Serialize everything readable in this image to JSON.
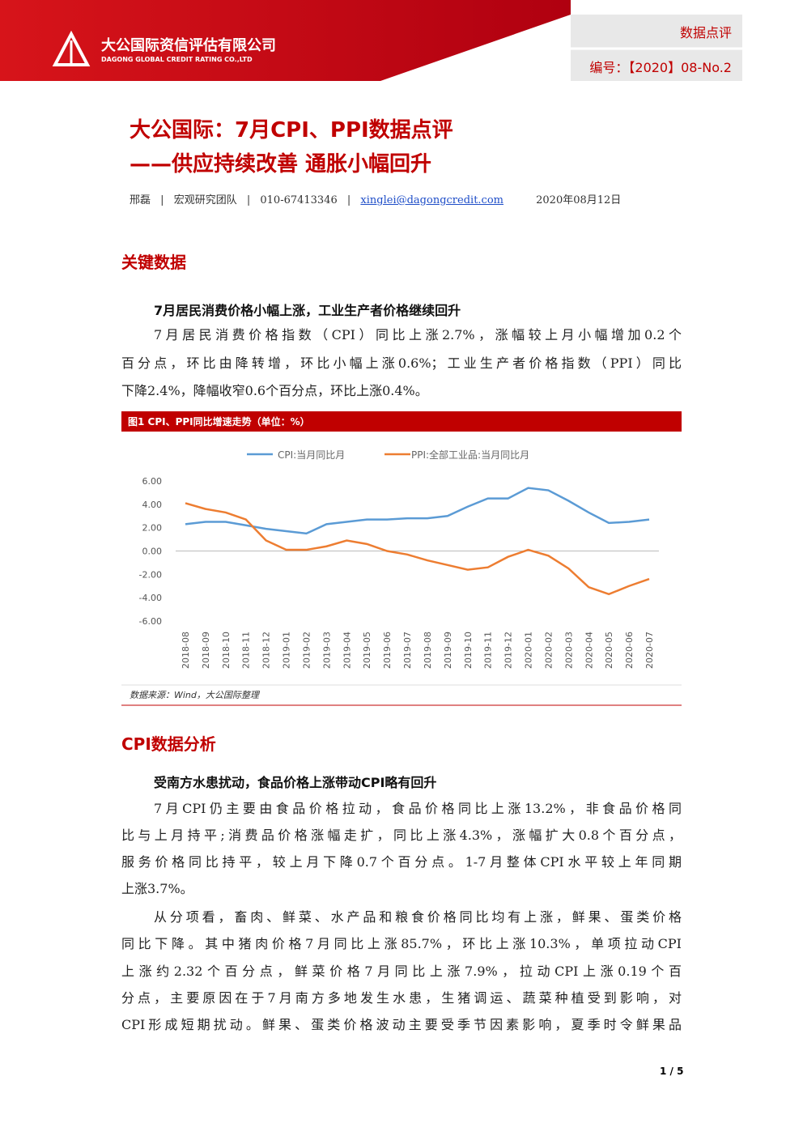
{
  "header": {
    "company_cn": "大公国际资信评估有限公司",
    "company_en": "DAGONG GLOBAL CREDIT RATING CO.,LTD",
    "tag": "数据点评",
    "number": "编号：【2020】08-No.2"
  },
  "title": {
    "line1": "大公国际：7月CPI、PPI数据点评",
    "line2": "——供应持续改善 通胀小幅回升"
  },
  "byline": {
    "author": "邢磊",
    "separator": "|",
    "team": "宏观研究团队",
    "phone": "010-67413346",
    "email": "xinglei@dagongcredit.com",
    "date": "2020年08月12日"
  },
  "sections": [
    {
      "heading": "关键数据",
      "subheading": "7月居民消费价格小幅上涨，工业生产者价格继续回升",
      "paragraphs": [
        [
          "7月居民消费价格指数（CPI）同比上涨2.7%，涨幅较上月小幅增加0.2个",
          "百分点，环比由降转增，环比小幅上涨0.6%；工业生产者价格指数（PPI）同比",
          "下降2.4%，降幅收窄0.6个百分点，环比上涨0.4%。"
        ]
      ]
    },
    {
      "heading": "CPI数据分析",
      "subheading": "受南方水患扰动，食品价格上涨带动CPI略有回升",
      "paragraphs": [
        [
          "7月CPI仍主要由食品价格拉动，食品价格同比上涨13.2%，非食品价格同",
          "比与上月持平;消费品价格涨幅走扩，同比上涨4.3%，涨幅扩大0.8个百分点，",
          "服务价格同比持平，较上月下降0.7个百分点。1-7月整体CPI水平较上年同期",
          "上涨3.7%。"
        ],
        [
          "从分项看，畜肉、鲜菜、水产品和粮食价格同比均有上涨，鲜果、蛋类价格",
          "同比下降。其中猪肉价格7月同比上涨85.7%，环比上涨10.3%，单项拉动CPI",
          "上涨约2.32个百分点，鲜菜价格7月同比上涨7.9%，拉动CPI上涨0.19个百",
          "分点，主要原因在于7月南方多地发生水患，生猪调运、蔬菜种植受到影响，对",
          "CPI形成短期扰动。鲜果、蛋类价格波动主要受季节因素影响，夏季时令鲜果品"
        ]
      ]
    }
  ],
  "chart_data": {
    "type": "line",
    "title": "图1 CPI、PPI同比增速走势（单位：%）",
    "source": "数据来源：Wind，大公国际整理",
    "categories": [
      "2018-08",
      "2018-09",
      "2018-10",
      "2018-11",
      "2018-12",
      "2019-01",
      "2019-02",
      "2019-03",
      "2019-04",
      "2019-05",
      "2019-06",
      "2019-07",
      "2019-08",
      "2019-09",
      "2019-10",
      "2019-11",
      "2019-12",
      "2020-01",
      "2020-02",
      "2020-03",
      "2020-04",
      "2020-05",
      "2020-06",
      "2020-07"
    ],
    "series": [
      {
        "name": "CPI:当月同比月",
        "color": "#5b9bd5",
        "values": [
          2.3,
          2.5,
          2.5,
          2.2,
          1.9,
          1.7,
          1.5,
          2.3,
          2.5,
          2.7,
          2.7,
          2.8,
          2.8,
          3.0,
          3.8,
          4.5,
          4.5,
          5.4,
          5.2,
          4.3,
          3.3,
          2.4,
          2.5,
          2.7
        ]
      },
      {
        "name": "PPI:全部工业品:当月同比月",
        "color": "#ed7d31",
        "values": [
          4.1,
          3.6,
          3.3,
          2.7,
          0.9,
          0.1,
          0.1,
          0.4,
          0.9,
          0.6,
          0.0,
          -0.3,
          -0.8,
          -1.2,
          -1.6,
          -1.4,
          -0.5,
          0.1,
          -0.4,
          -1.5,
          -3.1,
          -3.7,
          -3.0,
          -2.4
        ]
      }
    ],
    "ylim": [
      -6,
      6
    ],
    "yticks": [
      {
        "value": 6,
        "label": "6.00"
      },
      {
        "value": 4,
        "label": "4.00"
      },
      {
        "value": 2,
        "label": "2.00"
      },
      {
        "value": 0,
        "label": "0.00"
      },
      {
        "value": -2,
        "label": "-2.00"
      },
      {
        "value": -4,
        "label": "-4.00"
      },
      {
        "value": -6,
        "label": "-6.00"
      }
    ],
    "legend": "top",
    "grid": false
  },
  "footer": {
    "page": "1 / 5"
  }
}
